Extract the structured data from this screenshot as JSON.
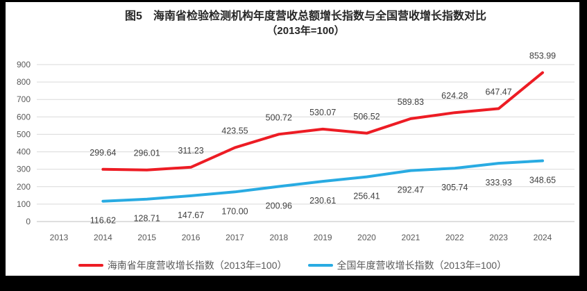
{
  "chart_data": {
    "type": "line",
    "title": "图5　海南省检验检测机构年度营收总额增长指数与全国营收增长指数对比",
    "subtitle": "（2013年=100）",
    "categories": [
      "2013",
      "2014",
      "2015",
      "2016",
      "2017",
      "2018",
      "2019",
      "2020",
      "2021",
      "2022",
      "2023",
      "2024"
    ],
    "series": [
      {
        "name": "海南省年度营收增长指数（2013年=100）",
        "color": "#ed1c24",
        "label_position": "above",
        "values": [
          null,
          299.64,
          296.01,
          311.23,
          423.55,
          500.72,
          530.07,
          506.52,
          589.83,
          624.28,
          647.47,
          853.99
        ]
      },
      {
        "name": "全国年度营收增长指数（2013年=100）",
        "color": "#29abe2",
        "label_position": "below",
        "values": [
          null,
          116.62,
          128.71,
          147.67,
          170.0,
          200.96,
          230.61,
          256.41,
          292.47,
          305.74,
          333.93,
          348.65
        ]
      }
    ],
    "xlabel": "",
    "ylabel": "",
    "ylim": [
      0,
      900
    ],
    "ytick_step": 100,
    "grid": true,
    "legend_position": "bottom",
    "colors": {
      "gridline": "#d9d9d9",
      "axis_line": "#bfbfbf",
      "axis_label": "#595959",
      "data_label": "#404040",
      "frame_background": "#000000",
      "panel_background": "#ffffff"
    }
  }
}
